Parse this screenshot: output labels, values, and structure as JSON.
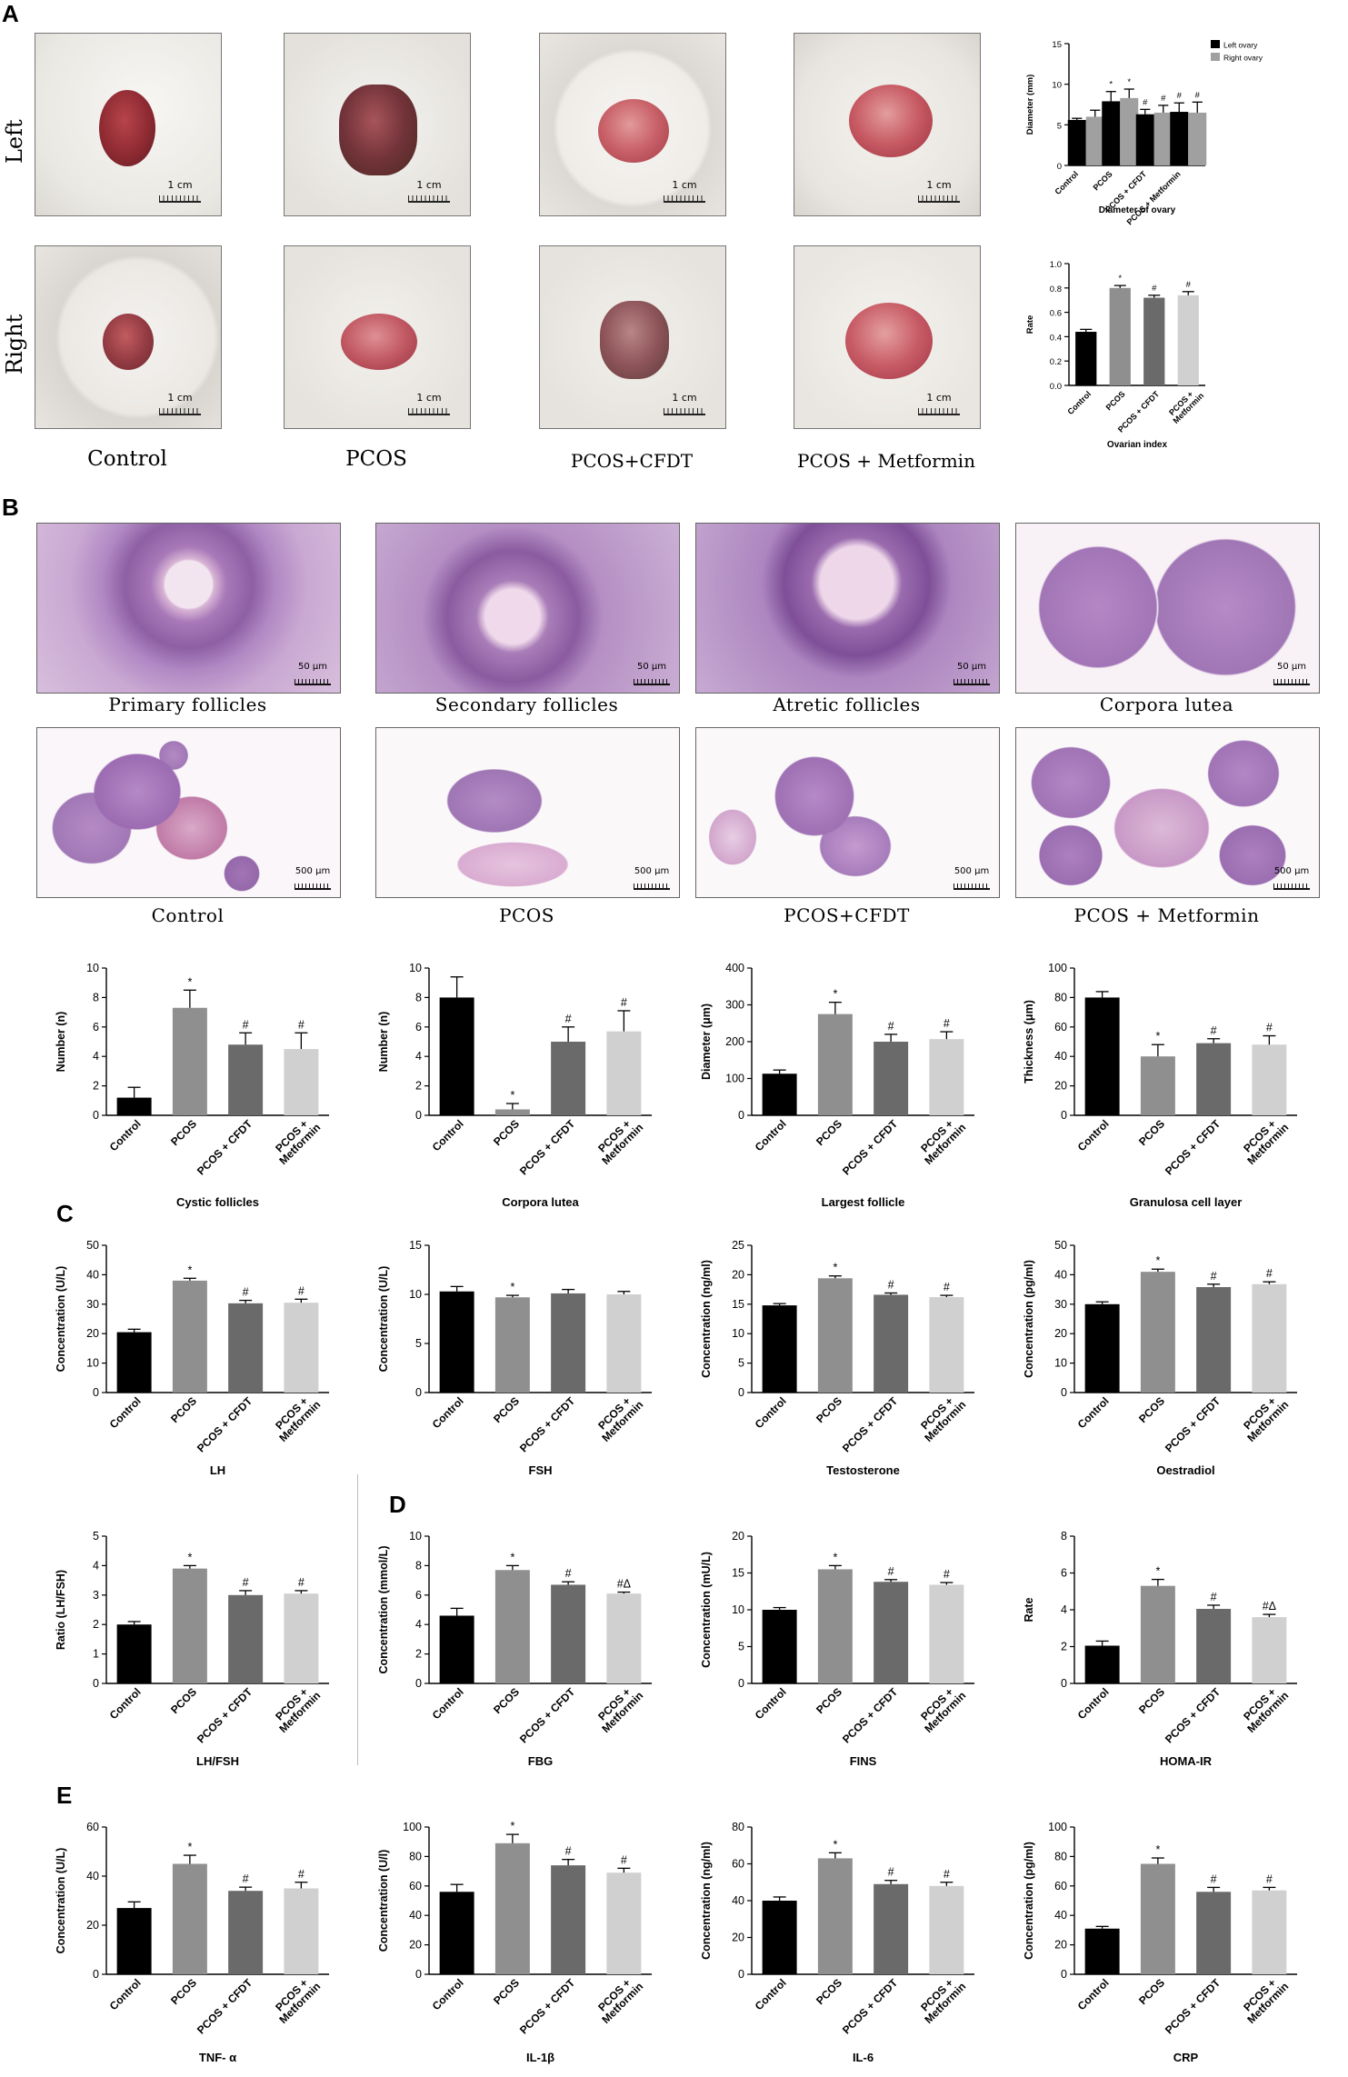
{
  "panels": {
    "A": "A",
    "B": "B",
    "C": "C",
    "D": "D",
    "E": "E"
  },
  "panel_a": {
    "row_labels": [
      "Left",
      "Right"
    ],
    "group_labels": [
      "Control",
      "PCOS",
      "PCOS+CFDT",
      "PCOS + Metformin"
    ],
    "scale_label": "1 cm"
  },
  "panel_b": {
    "follicle_captions": [
      "Primary follicles",
      "Secondary follicles",
      "Atretic follicles",
      "Corpora lutea"
    ],
    "follicle_scale": "50 μm",
    "group_labels": [
      "Control",
      "PCOS",
      "PCOS+CFDT",
      "PCOS + Metformin"
    ],
    "ovary_scale": "500 μm"
  },
  "colors": {
    "control": "#000000",
    "pcos": "#8f8f8f",
    "cfdt": "#6a6a6a",
    "metformin": "#d0d0d0",
    "left": "#000000",
    "right": "#a0a0a0"
  },
  "chart_data": [
    {
      "id": "diam",
      "type": "bar",
      "title": "Diameter of ovary",
      "ylabel": "Diameter (mm)",
      "ylim": [
        0,
        15
      ],
      "yticks": [
        0,
        5,
        10,
        15
      ],
      "categories": [
        "Control",
        "PCOS",
        "PCOS + CFDT",
        "PCOS + Metformin"
      ],
      "legend": [
        "Left ovary",
        "Right ovary"
      ],
      "series": [
        {
          "name": "Left ovary",
          "values": [
            5.6,
            7.9,
            6.3,
            6.6
          ],
          "err": [
            0.2,
            1.2,
            0.6,
            1.1
          ],
          "marks": [
            "",
            "*",
            "#",
            "#"
          ]
        },
        {
          "name": "Right ovary",
          "values": [
            6.0,
            8.3,
            6.5,
            6.5
          ],
          "err": [
            0.8,
            1.1,
            0.9,
            1.3
          ],
          "marks": [
            "",
            "*",
            "#",
            "#"
          ]
        }
      ]
    },
    {
      "id": "ovidx",
      "type": "bar",
      "title": "Ovarian index",
      "ylabel": "Rate",
      "ylim": [
        0,
        1.0
      ],
      "yticks": [
        0.0,
        0.2,
        0.4,
        0.6,
        0.8,
        1.0
      ],
      "categories": [
        "Control",
        "PCOS",
        "PCOS + CFDT",
        "PCOS + Metformin"
      ],
      "values": [
        0.44,
        0.8,
        0.72,
        0.74
      ],
      "err": [
        0.02,
        0.02,
        0.02,
        0.03
      ],
      "marks": [
        "",
        "*",
        "#",
        "#"
      ]
    },
    {
      "id": "cystic",
      "type": "bar",
      "title": "Cystic follicles",
      "ylabel": "Number (n)",
      "ylim": [
        0,
        10
      ],
      "yticks": [
        0,
        2,
        4,
        6,
        8,
        10
      ],
      "categories": [
        "Control",
        "PCOS",
        "PCOS + CFDT",
        "PCOS + Metformin"
      ],
      "values": [
        1.2,
        7.3,
        4.8,
        4.5
      ],
      "err": [
        0.7,
        1.2,
        0.8,
        1.1
      ],
      "marks": [
        "",
        "*",
        "#",
        "#"
      ]
    },
    {
      "id": "lutea",
      "type": "bar",
      "title": "Corpora lutea",
      "ylabel": "Number (n)",
      "ylim": [
        0,
        10
      ],
      "yticks": [
        0,
        2,
        4,
        6,
        8,
        10
      ],
      "categories": [
        "Control",
        "PCOS",
        "PCOS + CFDT",
        "PCOS + Metformin"
      ],
      "values": [
        8.0,
        0.4,
        5.0,
        5.7
      ],
      "err": [
        1.4,
        0.4,
        1.0,
        1.4
      ],
      "marks": [
        "",
        "*",
        "#",
        "#"
      ]
    },
    {
      "id": "largest",
      "type": "bar",
      "title": "Largest follicle",
      "ylabel": "Diameter (μm)",
      "ylim": [
        0,
        400
      ],
      "yticks": [
        0,
        100,
        200,
        300,
        400
      ],
      "categories": [
        "Control",
        "PCOS",
        "PCOS + CFDT",
        "PCOS + Metformin"
      ],
      "values": [
        113,
        275,
        200,
        207
      ],
      "err": [
        10,
        32,
        20,
        20
      ],
      "marks": [
        "",
        "*",
        "#",
        "#"
      ]
    },
    {
      "id": "granulosa",
      "type": "bar",
      "title": "Granulosa cell layer",
      "ylabel": "Thickness (μm)",
      "ylim": [
        0,
        100
      ],
      "yticks": [
        0,
        20,
        40,
        60,
        80,
        100
      ],
      "categories": [
        "Control",
        "PCOS",
        "PCOS + CFDT",
        "PCOS + Metformin"
      ],
      "values": [
        80,
        40,
        49,
        48
      ],
      "err": [
        4,
        8,
        3,
        6
      ],
      "marks": [
        "",
        "*",
        "#",
        "#"
      ]
    },
    {
      "id": "lh",
      "type": "bar",
      "title": "LH",
      "ylabel": "Concentration (U/L)",
      "ylim": [
        0,
        50
      ],
      "yticks": [
        0,
        10,
        20,
        30,
        40,
        50
      ],
      "categories": [
        "Control",
        "PCOS",
        "PCOS + CFDT",
        "PCOS + Metformin"
      ],
      "values": [
        20.5,
        38.0,
        30.3,
        30.5
      ],
      "err": [
        1.0,
        0.8,
        1.0,
        1.2
      ],
      "marks": [
        "",
        "*",
        "#",
        "#"
      ]
    },
    {
      "id": "fsh",
      "type": "bar",
      "title": "FSH",
      "ylabel": "Concentration (U/L)",
      "ylim": [
        0,
        15
      ],
      "yticks": [
        0,
        5,
        10,
        15
      ],
      "categories": [
        "Control",
        "PCOS",
        "PCOS + CFDT",
        "PCOS + Metformin"
      ],
      "values": [
        10.3,
        9.7,
        10.1,
        10.0
      ],
      "err": [
        0.5,
        0.2,
        0.4,
        0.3
      ],
      "marks": [
        "",
        "*",
        "",
        ""
      ]
    },
    {
      "id": "testo",
      "type": "bar",
      "title": "Testosterone",
      "ylabel": "Concentration (ng/ml)",
      "ylim": [
        0,
        25
      ],
      "yticks": [
        0,
        5,
        10,
        15,
        20,
        25
      ],
      "categories": [
        "Control",
        "PCOS",
        "PCOS + CFDT",
        "PCOS + Metformin"
      ],
      "values": [
        14.8,
        19.4,
        16.6,
        16.2
      ],
      "err": [
        0.3,
        0.4,
        0.3,
        0.3
      ],
      "marks": [
        "",
        "*",
        "#",
        "#"
      ]
    },
    {
      "id": "oestra",
      "type": "bar",
      "title": "Oestradiol",
      "ylabel": "Concentration (pg/ml)",
      "ylim": [
        0,
        50
      ],
      "yticks": [
        0,
        10,
        20,
        30,
        40,
        50
      ],
      "categories": [
        "Control",
        "PCOS",
        "PCOS + CFDT",
        "PCOS + Metformin"
      ],
      "values": [
        30.0,
        41.0,
        35.8,
        36.8
      ],
      "err": [
        0.8,
        0.9,
        1.0,
        0.8
      ],
      "marks": [
        "",
        "*",
        "#",
        "#"
      ]
    },
    {
      "id": "lhfsh",
      "type": "bar",
      "title": "LH/FSH",
      "ylabel": "Ratio (LH/FSH)",
      "ylim": [
        0,
        5
      ],
      "yticks": [
        0,
        1,
        2,
        3,
        4,
        5
      ],
      "categories": [
        "Control",
        "PCOS",
        "PCOS + CFDT",
        "PCOS + Metformin"
      ],
      "values": [
        2.0,
        3.9,
        3.0,
        3.05
      ],
      "err": [
        0.1,
        0.1,
        0.15,
        0.1
      ],
      "marks": [
        "",
        "*",
        "#",
        "#"
      ]
    },
    {
      "id": "fbg",
      "type": "bar",
      "title": "FBG",
      "ylabel": "Concentration (mmol/L)",
      "ylim": [
        0,
        10
      ],
      "yticks": [
        0,
        2,
        4,
        6,
        8,
        10
      ],
      "categories": [
        "Control",
        "PCOS",
        "PCOS + CFDT",
        "PCOS + Metformin"
      ],
      "values": [
        4.6,
        7.7,
        6.7,
        6.1
      ],
      "err": [
        0.5,
        0.3,
        0.2,
        0.1
      ],
      "marks": [
        "",
        "*",
        "#",
        "#Δ"
      ]
    },
    {
      "id": "fins",
      "type": "bar",
      "title": "FINS",
      "ylabel": "Concentration (mU/L)",
      "ylim": [
        0,
        20
      ],
      "yticks": [
        0,
        5,
        10,
        15,
        20
      ],
      "categories": [
        "Control",
        "PCOS",
        "PCOS + CFDT",
        "PCOS + Metformin"
      ],
      "values": [
        10.0,
        15.5,
        13.8,
        13.4
      ],
      "err": [
        0.3,
        0.5,
        0.3,
        0.3
      ],
      "marks": [
        "",
        "*",
        "#",
        "#"
      ]
    },
    {
      "id": "homa",
      "type": "bar",
      "title": "HOMA-IR",
      "ylabel": "Rate",
      "ylim": [
        0,
        8
      ],
      "yticks": [
        0,
        2,
        4,
        6,
        8
      ],
      "categories": [
        "Control",
        "PCOS",
        "PCOS + CFDT",
        "PCOS + Metformin"
      ],
      "values": [
        2.05,
        5.3,
        4.05,
        3.6
      ],
      "err": [
        0.25,
        0.35,
        0.2,
        0.15
      ],
      "marks": [
        "",
        "*",
        "#",
        "#Δ"
      ]
    },
    {
      "id": "tnf",
      "type": "bar",
      "title": "TNF- α",
      "ylabel": "Concentration (U/L)",
      "ylim": [
        0,
        60
      ],
      "yticks": [
        0,
        20,
        40,
        60
      ],
      "categories": [
        "Control",
        "PCOS",
        "PCOS + CFDT",
        "PCOS + Metformin"
      ],
      "values": [
        27,
        45,
        34,
        35
      ],
      "err": [
        2.5,
        3.5,
        1.5,
        2.5
      ],
      "marks": [
        "",
        "*",
        "#",
        "#"
      ]
    },
    {
      "id": "il1b",
      "type": "bar",
      "title": "IL-1β",
      "ylabel": "Concentration (U/l)",
      "ylim": [
        0,
        100
      ],
      "yticks": [
        0,
        20,
        40,
        60,
        80,
        100
      ],
      "categories": [
        "Control",
        "PCOS",
        "PCOS + CFDT",
        "PCOS + Metformin"
      ],
      "values": [
        56,
        89,
        74,
        69
      ],
      "err": [
        5,
        6,
        4,
        3
      ],
      "marks": [
        "",
        "*",
        "#",
        "#"
      ]
    },
    {
      "id": "il6",
      "type": "bar",
      "title": "IL-6",
      "ylabel": "Concentration (ng/ml)",
      "ylim": [
        0,
        80
      ],
      "yticks": [
        0,
        20,
        40,
        60,
        80
      ],
      "categories": [
        "Control",
        "PCOS",
        "PCOS + CFDT",
        "PCOS + Metformin"
      ],
      "values": [
        40,
        63,
        49,
        48
      ],
      "err": [
        2,
        3,
        2,
        2
      ],
      "marks": [
        "",
        "*",
        "#",
        "#"
      ]
    },
    {
      "id": "crp",
      "type": "bar",
      "title": "CRP",
      "ylabel": "Concentration (pg/ml)",
      "ylim": [
        0,
        100
      ],
      "yticks": [
        0,
        20,
        40,
        60,
        80,
        100
      ],
      "categories": [
        "Control",
        "PCOS",
        "PCOS + CFDT",
        "PCOS + Metformin"
      ],
      "values": [
        31,
        75,
        56,
        57
      ],
      "err": [
        1.5,
        4,
        3,
        2
      ],
      "marks": [
        "",
        "*",
        "#",
        "#"
      ]
    }
  ]
}
